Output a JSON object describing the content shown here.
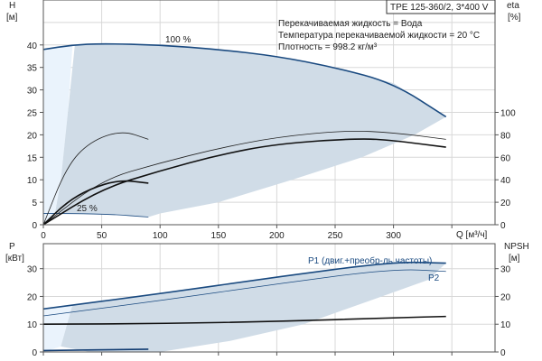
{
  "chart_data": [
    {
      "type": "line",
      "panel": "head-efficiency",
      "xlabel": "Q [м³/ч]",
      "ylabel": "H",
      "yunit": "[м]",
      "y2label": "eta",
      "y2unit": "[%]",
      "xlim": [
        0,
        387
      ],
      "ylim": [
        0,
        50
      ],
      "y2lim": [
        0,
        200
      ],
      "xticks": [
        "0",
        "50",
        "100",
        "150",
        "200",
        "250",
        "300"
      ],
      "yticks": [
        "0",
        "5",
        "10",
        "15",
        "20",
        "25",
        "30",
        "35",
        "40"
      ],
      "y2ticks": [
        "0",
        "20",
        "40",
        "60",
        "80",
        "100"
      ],
      "grid": true,
      "info_box": "TPE 125-360/2, 3*400 V",
      "info_lines": [
        "Перекачиваемая жидкость = Вода",
        "Температура перекачиваемой жидкости = 20 °C",
        "Плотность = 998.2 кг/м³"
      ],
      "curve_labels": {
        "full_speed": "100 %",
        "min_speed": "25 %"
      },
      "series": [
        {
          "key": "h100",
          "axis": "H",
          "color": "#1a4a80",
          "x": [
            0,
            25,
            50,
            100,
            150,
            200,
            250,
            300,
            345
          ],
          "y": [
            39,
            40,
            40.3,
            40,
            39,
            37.5,
            35,
            31.5,
            24
          ]
        },
        {
          "key": "h25",
          "axis": "H",
          "color": "#1a4a80",
          "x": [
            0,
            25,
            60,
            90
          ],
          "y": [
            2.5,
            2.5,
            2.3,
            1.7
          ]
        },
        {
          "key": "eta100_thin",
          "axis": "eta",
          "color": "#222222",
          "x": [
            0,
            50,
            100,
            150,
            200,
            260,
            300,
            345
          ],
          "y": [
            0,
            40,
            55,
            68,
            78,
            84,
            82,
            76
          ]
        },
        {
          "key": "eta100_thick",
          "axis": "eta",
          "color": "#111111",
          "x": [
            0,
            50,
            100,
            150,
            200,
            270,
            300,
            345
          ],
          "y": [
            0,
            32,
            48,
            62,
            72,
            77,
            75,
            69
          ]
        },
        {
          "key": "eta25_thin",
          "axis": "eta",
          "color": "#222222",
          "x": [
            0,
            20,
            40,
            67,
            90
          ],
          "y": [
            0,
            52,
            74,
            84,
            76
          ]
        },
        {
          "key": "eta25_thick",
          "axis": "eta",
          "color": "#111111",
          "x": [
            0,
            20,
            40,
            65,
            90
          ],
          "y": [
            0,
            20,
            32,
            40,
            37
          ]
        }
      ],
      "region_main": {
        "x": [
          25,
          50,
          100,
          150,
          200,
          250,
          300,
          345,
          318,
          273,
          213,
          150,
          100,
          90,
          60,
          10,
          15,
          21,
          27
        ],
        "y": [
          40,
          40.3,
          40,
          39,
          37.5,
          35,
          31.5,
          24,
          20,
          15,
          10,
          5,
          2.5,
          1.7,
          2.3,
          2.5,
          10,
          25,
          40
        ]
      },
      "region_light": {
        "x": [
          0,
          0,
          25,
          21,
          15,
          10,
          0
        ],
        "y": [
          0,
          39,
          40,
          25,
          10,
          2.5,
          0
        ]
      }
    },
    {
      "type": "line",
      "panel": "power-npsh",
      "ylabel": "P",
      "yunit": "[кВт]",
      "y2label": "NPSH",
      "y2unit": "[м]",
      "xlim": [
        0,
        387
      ],
      "ylim": [
        0,
        39
      ],
      "yticks": [
        "0",
        "10",
        "20",
        "30"
      ],
      "y2ticks": [
        "0",
        "10",
        "20",
        "30"
      ],
      "grid": true,
      "series": [
        {
          "key": "p1",
          "name": "P1 (двиг.+преобр-ль частоты)",
          "color": "#1a4a80",
          "x": [
            0,
            100,
            200,
            300,
            345
          ],
          "y": [
            15.5,
            21,
            27,
            32.5,
            32
          ]
        },
        {
          "key": "p2",
          "name": "P2",
          "color": "#1a4a80",
          "x": [
            0,
            100,
            200,
            300,
            345
          ],
          "y": [
            13,
            18.5,
            24.5,
            30,
            29
          ]
        },
        {
          "key": "npsh",
          "color": "#111111",
          "x": [
            0,
            100,
            200,
            300,
            345
          ],
          "y": [
            10,
            10.2,
            11,
            12.3,
            12.8
          ]
        },
        {
          "key": "p25",
          "color": "#0f3a70",
          "x": [
            0,
            90
          ],
          "y": [
            0.5,
            1
          ]
        }
      ],
      "region_main": {
        "x": [
          25,
          100,
          200,
          300,
          345,
          330,
          290,
          223,
          160,
          100,
          40,
          15,
          25
        ],
        "y": [
          17,
          21,
          27,
          32.5,
          32,
          26,
          20,
          10,
          4,
          0,
          0,
          2,
          17
        ]
      },
      "region_light": {
        "x": [
          0,
          0,
          25,
          15,
          0
        ],
        "y": [
          0,
          15.5,
          17,
          2,
          0
        ]
      }
    }
  ],
  "colors": {
    "shade": "#d0dce7",
    "shade_light": "#eaf3fc",
    "grid": "#d8d8d8",
    "curve": "#1a4a80"
  }
}
